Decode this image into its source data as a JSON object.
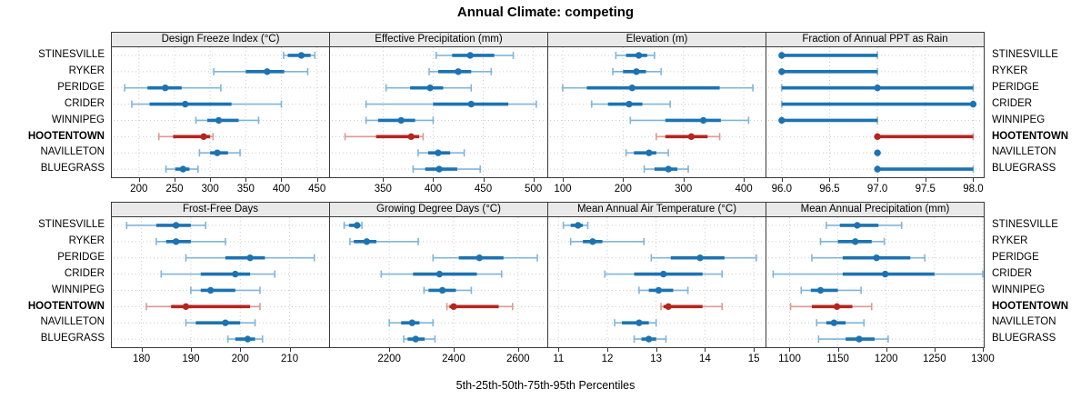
{
  "title": "Annual Climate: competing",
  "xlabel": "5th-25th-50th-75th-95th Percentiles",
  "cities": [
    "STINESVILLE",
    "RYKER",
    "PERIDGE",
    "CRIDER",
    "WINNIPEG",
    "HOOTENTOWN",
    "NAVILLETON",
    "BLUEGRASS"
  ],
  "highlight_city": "HOOTENTOWN",
  "colors": {
    "series": "#1c73b1",
    "series_light": "#7fb5da",
    "highlight": "#b3261f",
    "highlight_light": "#dc9a94",
    "strip_bg": "#e9e9e9",
    "panel_border": "#3a3a3a",
    "grid": "#cccccc",
    "tick": "#333333"
  },
  "chart_data": {
    "type": "percentile-dotplot",
    "orientation": "horizontal",
    "percentile_labels": [
      "5th",
      "25th",
      "50th",
      "75th",
      "95th"
    ],
    "layout": "2 rows x 4 panels, city labels on both sides, HOOTENTOWN highlighted red/bold",
    "grid": "dotted",
    "panels": [
      {
        "title": "Design Freeze Index (°C)",
        "range": [
          162,
          467
        ],
        "ticks": [
          200,
          250,
          300,
          350,
          400,
          450
        ],
        "tick_labels": [
          "200",
          "250",
          "300",
          "350",
          "400",
          "450"
        ],
        "values": {
          "STINESVILLE": [
            403,
            409,
            428,
            441,
            447
          ],
          "RYKER": [
            305,
            350,
            380,
            404,
            437
          ],
          "PERIDGE": [
            180,
            212,
            237,
            260,
            315
          ],
          "CRIDER": [
            190,
            215,
            265,
            330,
            400
          ],
          "WINNIPEG": [
            280,
            296,
            312,
            340,
            368
          ],
          "HOOTENTOWN": [
            228,
            248,
            291,
            300,
            304
          ],
          "NAVILLETON": [
            285,
            300,
            310,
            325,
            342
          ],
          "BLUEGRASS": [
            238,
            251,
            262,
            271,
            283
          ]
        }
      },
      {
        "title": "Effective Precipitation (mm)",
        "range": [
          297,
          514
        ],
        "ticks": [
          350,
          400,
          450,
          500
        ],
        "tick_labels": [
          "350",
          "400",
          "450",
          "500"
        ],
        "values": {
          "STINESVILLE": [
            403,
            419,
            437,
            461,
            480
          ],
          "RYKER": [
            396,
            405,
            425,
            438,
            458
          ],
          "PERIDGE": [
            353,
            377,
            397,
            410,
            438
          ],
          "CRIDER": [
            333,
            400,
            438,
            475,
            503
          ],
          "WINNIPEG": [
            333,
            345,
            368,
            382,
            400
          ],
          "HOOTENTOWN": [
            312,
            343,
            378,
            386,
            390
          ],
          "NAVILLETON": [
            385,
            395,
            405,
            417,
            431
          ],
          "BLUEGRASS": [
            380,
            392,
            406,
            424,
            447
          ]
        }
      },
      {
        "title": "Elevation (m)",
        "range": [
          76,
          436
        ],
        "ticks": [
          100,
          200,
          300,
          400
        ],
        "tick_labels": [
          "100",
          "200",
          "300",
          "400"
        ],
        "values": {
          "STINESVILLE": [
            188,
            205,
            226,
            240,
            252
          ],
          "RYKER": [
            183,
            200,
            222,
            238,
            263
          ],
          "PERIDGE": [
            100,
            140,
            215,
            360,
            415
          ],
          "CRIDER": [
            148,
            175,
            210,
            232,
            278
          ],
          "WINNIPEG": [
            212,
            270,
            333,
            362,
            408
          ],
          "HOOTENTOWN": [
            255,
            270,
            313,
            340,
            360
          ],
          "NAVILLETON": [
            205,
            218,
            243,
            255,
            275
          ],
          "BLUEGRASS": [
            235,
            252,
            275,
            290,
            308
          ]
        }
      },
      {
        "title": "Fraction of Annual PPT as Rain",
        "range": [
          95.84,
          98.11
        ],
        "ticks": [
          96.0,
          96.5,
          97.0,
          97.5,
          98.0
        ],
        "tick_labels": [
          "96.0",
          "96.5",
          "97.0",
          "97.5",
          "98.0"
        ],
        "values": {
          "STINESVILLE": [
            96,
            96,
            96,
            97,
            97
          ],
          "RYKER": [
            96,
            96,
            96,
            97,
            97
          ],
          "PERIDGE": [
            96,
            96,
            97,
            98,
            98
          ],
          "CRIDER": [
            96,
            96,
            98,
            98,
            98
          ],
          "WINNIPEG": [
            96,
            96,
            96,
            97,
            97
          ],
          "HOOTENTOWN": [
            97,
            97,
            97,
            98,
            98
          ],
          "NAVILLETON": [
            97,
            97,
            97,
            97,
            97
          ],
          "BLUEGRASS": [
            97,
            97,
            97,
            98,
            98
          ]
        }
      },
      {
        "title": "Frost-Free Days",
        "range": [
          174,
          218
        ],
        "ticks": [
          180,
          190,
          200,
          210
        ],
        "tick_labels": [
          "180",
          "190",
          "200",
          "210"
        ],
        "values": {
          "STINESVILLE": [
            177,
            183,
            187,
            190,
            193
          ],
          "RYKER": [
            183,
            185,
            187,
            190,
            197
          ],
          "PERIDGE": [
            189,
            197,
            202,
            205,
            215
          ],
          "CRIDER": [
            184,
            192,
            199,
            202,
            207
          ],
          "WINNIPEG": [
            190,
            192,
            194,
            199,
            204
          ],
          "HOOTENTOWN": [
            181,
            186,
            189,
            202,
            204
          ],
          "NAVILLETON": [
            189,
            191,
            197,
            200,
            203
          ],
          "BLUEGRASS": [
            197.5,
            199,
            201.5,
            203,
            204.5
          ]
        }
      },
      {
        "title": "Growing Degree Days (°C)",
        "range": [
          2016,
          2691
        ],
        "ticks": [
          2200,
          2400,
          2600
        ],
        "tick_labels": [
          "2200",
          "2400",
          "2600"
        ],
        "values": {
          "STINESVILLE": [
            2060,
            2075,
            2100,
            2110,
            2115
          ],
          "RYKER": [
            2078,
            2090,
            2130,
            2160,
            2290
          ],
          "PERIDGE": [
            2336,
            2416,
            2480,
            2555,
            2660
          ],
          "CRIDER": [
            2175,
            2274,
            2356,
            2472,
            2549
          ],
          "WINNIPEG": [
            2308,
            2322,
            2365,
            2407,
            2455
          ],
          "HOOTENTOWN": [
            2379,
            2387,
            2400,
            2540,
            2583
          ],
          "NAVILLETON": [
            2200,
            2237,
            2271,
            2294,
            2336
          ],
          "BLUEGRASS": [
            2245,
            2257,
            2282,
            2310,
            2342
          ]
        }
      },
      {
        "title": "Mean Annual Air Temperature (°C)",
        "range": [
          10.79,
          15.24
        ],
        "ticks": [
          11,
          12,
          13,
          14,
          15
        ],
        "tick_labels": [
          "11",
          "12",
          "13",
          "14",
          "15"
        ],
        "values": {
          "STINESVILLE": [
            11.1,
            11.25,
            11.4,
            11.5,
            11.6
          ],
          "RYKER": [
            11.25,
            11.5,
            11.7,
            11.9,
            12.75
          ],
          "PERIDGE": [
            12.9,
            13.3,
            13.9,
            14.4,
            15.05
          ],
          "CRIDER": [
            11.95,
            12.55,
            13.15,
            13.95,
            14.35
          ],
          "WINNIPEG": [
            12.65,
            12.85,
            13.05,
            13.35,
            13.65
          ],
          "HOOTENTOWN": [
            13.1,
            13.15,
            13.25,
            13.95,
            14.35
          ],
          "NAVILLETON": [
            12.15,
            12.3,
            12.65,
            12.85,
            13.0
          ],
          "BLUEGRASS": [
            12.55,
            12.7,
            12.85,
            13.0,
            13.2
          ]
        }
      },
      {
        "title": "Mean Annual Precipitation (mm)",
        "range": [
          1076,
          1301
        ],
        "ticks": [
          1100,
          1150,
          1200,
          1250,
          1300
        ],
        "tick_labels": [
          "1100",
          "1150",
          "1200",
          "1250",
          "1300"
        ],
        "values": {
          "STINESVILLE": [
            1138,
            1152,
            1170,
            1192,
            1216
          ],
          "RYKER": [
            1132,
            1150,
            1168,
            1185,
            1198
          ],
          "PERIDGE": [
            1123,
            1155,
            1190,
            1225,
            1240
          ],
          "CRIDER": [
            1083,
            1155,
            1199,
            1250,
            1300
          ],
          "WINNIPEG": [
            1112,
            1122,
            1132,
            1150,
            1174
          ],
          "HOOTENTOWN": [
            1101,
            1123,
            1149,
            1165,
            1185
          ],
          "NAVILLETON": [
            1128,
            1138,
            1146,
            1158,
            1177
          ],
          "BLUEGRASS": [
            1130,
            1158,
            1172,
            1188,
            1202
          ]
        }
      }
    ]
  }
}
